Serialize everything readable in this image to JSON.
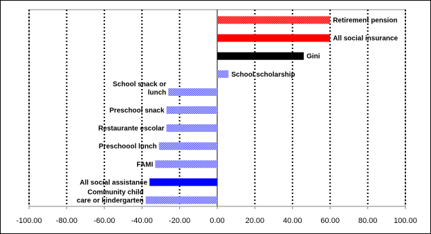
{
  "chart_data": {
    "type": "bar",
    "orientation": "horizontal",
    "grid": true,
    "xlim": [
      -100,
      100
    ],
    "xticks": [
      -100,
      -80,
      -60,
      -40,
      -20,
      0,
      20,
      40,
      60,
      80,
      100
    ],
    "tick_labels": [
      "-100.00",
      "-80.00",
      "-60.00",
      "-40.00",
      "-20.00",
      "0.00",
      "20.00",
      "40.00",
      "60.00",
      "80.00",
      "100.00"
    ],
    "bars": [
      {
        "label": "Retirement pension",
        "value": 60,
        "color": "#ff0000",
        "pattern": "hatch-red",
        "label_side": "right"
      },
      {
        "label": "All social insurance",
        "value": 60,
        "color": "#ff0000",
        "pattern": "solid",
        "label_side": "right"
      },
      {
        "label": "Gini",
        "value": 46,
        "color": "#000000",
        "pattern": "solid",
        "label_side": "right"
      },
      {
        "label": "School scholarship",
        "value": 6,
        "color": "#8080ff",
        "pattern": "hatch-blue",
        "label_side": "right"
      },
      {
        "label": "School snack or lunch",
        "label_lines": [
          "School snack or",
          "lunch"
        ],
        "value": -26,
        "color": "#8080ff",
        "pattern": "hatch-blue",
        "label_side": "left"
      },
      {
        "label": "Preschool snack",
        "value": -27,
        "color": "#8080ff",
        "pattern": "hatch-blue",
        "label_side": "left"
      },
      {
        "label": "Restaurante escolar",
        "value": -27,
        "color": "#8080ff",
        "pattern": "hatch-blue",
        "label_side": "left"
      },
      {
        "label": "Preschoool lunch",
        "value": -31,
        "color": "#8080ff",
        "pattern": "hatch-blue",
        "label_side": "left"
      },
      {
        "label": "FAMI",
        "value": -33,
        "color": "#8080ff",
        "pattern": "hatch-blue",
        "label_side": "left"
      },
      {
        "label": "All social assistance",
        "value": -36,
        "color": "#0000ff",
        "pattern": "solid",
        "label_side": "left"
      },
      {
        "label": "Community child care or kindergarten",
        "label_lines": [
          "Community child",
          "care or kindergarten"
        ],
        "value": -38,
        "color": "#8080ff",
        "pattern": "hatch-blue",
        "label_side": "left"
      }
    ]
  }
}
